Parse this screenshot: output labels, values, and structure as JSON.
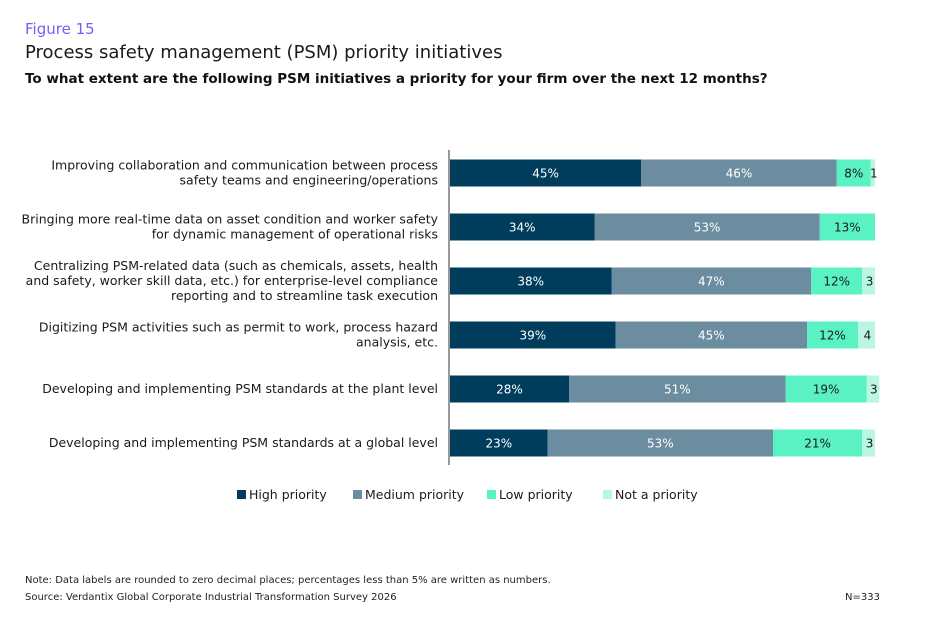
{
  "figure_label": "Figure 15",
  "title": "Process safety management (PSM) priority initiatives",
  "subtitle": "To what extent are the following PSM initiatives a priority for your firm over the next 12 months?",
  "note": "Note: Data labels are rounded to zero decimal places; percentages less than 5% are written as numbers.",
  "source": "Source: Verdantix Global Corporate Industrial Transformation Survey 2026",
  "sample": "N=333",
  "chart_data": {
    "type": "bar",
    "orientation": "horizontal",
    "stacked": true,
    "xlim": [
      0,
      100
    ],
    "categories": [
      [
        "Improving collaboration and communication between process",
        "safety teams and engineering/operations"
      ],
      [
        "Bringing more real-time data on asset condition and worker safety",
        "for dynamic management of operational risks"
      ],
      [
        "Centralizing PSM-related data (such as chemicals, assets, health",
        "and safety, worker skill data, etc.) for enterprise-level compliance",
        "reporting and to streamline task execution"
      ],
      [
        "Digitizing PSM activities such as permit to work, process hazard",
        "analysis, etc."
      ],
      [
        "Developing and implementing PSM standards at the plant level"
      ],
      [
        "Developing and implementing PSM standards at a global level"
      ]
    ],
    "series": [
      {
        "name": "High priority",
        "color": "#003d5c",
        "label_color": "#ffffff",
        "values": [
          45,
          34,
          38,
          39,
          28,
          23
        ],
        "labels": [
          "45%",
          "34%",
          "38%",
          "39%",
          "28%",
          "23%"
        ]
      },
      {
        "name": "Medium priority",
        "color": "#6c8c9f",
        "label_color": "#ffffff",
        "values": [
          46,
          53,
          47,
          45,
          51,
          53
        ],
        "labels": [
          "46%",
          "53%",
          "47%",
          "45%",
          "51%",
          "53%"
        ]
      },
      {
        "name": "Low priority",
        "color": "#5af2c2",
        "label_color": "#1a1a1a",
        "values": [
          8,
          13,
          12,
          12,
          19,
          21
        ],
        "labels": [
          "8%",
          "13%",
          "12%",
          "12%",
          "19%",
          "21%"
        ]
      },
      {
        "name": "Not a priority",
        "color": "#b9f7e2",
        "label_color": "#1a1a1a",
        "values": [
          1,
          0,
          3,
          4,
          3,
          3
        ],
        "labels": [
          "1",
          "",
          "3",
          "4",
          "3",
          "3"
        ]
      }
    ],
    "legend": "bottom"
  }
}
